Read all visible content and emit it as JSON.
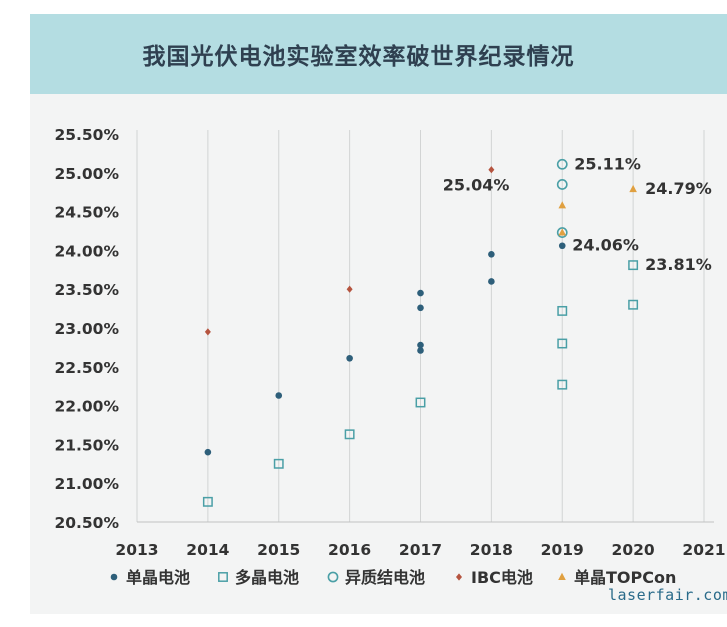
{
  "chart_data": {
    "type": "scatter",
    "title": "我国光伏电池实验室效率破世界纪录情况",
    "xlim": [
      2013,
      2021
    ],
    "ylim": [
      20.5,
      25.5
    ],
    "x_ticks": [
      "2013",
      "2014",
      "2015",
      "2016",
      "2017",
      "2018",
      "2019",
      "2020",
      "2021"
    ],
    "y_ticks": [
      "20.50%",
      "21.00%",
      "21.50%",
      "22.00%",
      "22.50%",
      "23.00%",
      "23.50%",
      "24.00%",
      "24.50%",
      "25.00%",
      "25.50%"
    ],
    "grid": "vertical",
    "legend_position": "bottom",
    "series": [
      {
        "name": "单晶电池",
        "marker": "filled-circle",
        "color": "#2e5f7a",
        "points": [
          [
            2014,
            21.4
          ],
          [
            2015,
            22.13
          ],
          [
            2016,
            22.61
          ],
          [
            2017,
            23.45
          ],
          [
            2017,
            23.26
          ],
          [
            2017,
            22.78
          ],
          [
            2017,
            22.71
          ],
          [
            2018,
            23.95
          ],
          [
            2018,
            23.6
          ],
          [
            2019,
            24.06
          ]
        ]
      },
      {
        "name": "多晶电池",
        "marker": "open-square",
        "color": "#4a9fa6",
        "points": [
          [
            2014,
            20.76
          ],
          [
            2015,
            21.25
          ],
          [
            2016,
            21.63
          ],
          [
            2017,
            22.04
          ],
          [
            2019,
            23.22
          ],
          [
            2019,
            22.8
          ],
          [
            2019,
            22.27
          ],
          [
            2020,
            23.81
          ],
          [
            2020,
            23.3
          ]
        ]
      },
      {
        "name": "异质结电池",
        "marker": "open-circle",
        "color": "#4a9fa6",
        "points": [
          [
            2019,
            25.11
          ],
          [
            2019,
            24.85
          ],
          [
            2019,
            24.23
          ]
        ]
      },
      {
        "name": "IBC电池",
        "marker": "diamond",
        "color": "#b5543f",
        "points": [
          [
            2014,
            22.95
          ],
          [
            2016,
            23.5
          ],
          [
            2018,
            25.04
          ]
        ]
      },
      {
        "name": "单晶TOPCon",
        "marker": "triangle",
        "color": "#e0a040",
        "points": [
          [
            2019,
            24.58
          ],
          [
            2019,
            24.23
          ],
          [
            2020,
            24.79
          ]
        ]
      }
    ],
    "annotations": [
      {
        "text": "25.11%",
        "x": 2019,
        "y": 25.11
      },
      {
        "text": "25.04%",
        "x": 2018,
        "y": 25.04
      },
      {
        "text": "24.79%",
        "x": 2020,
        "y": 24.79
      },
      {
        "text": "24.06%",
        "x": 2019,
        "y": 24.06
      },
      {
        "text": "23.81%",
        "x": 2020,
        "y": 23.81
      }
    ]
  },
  "watermark": "laserfair.com"
}
